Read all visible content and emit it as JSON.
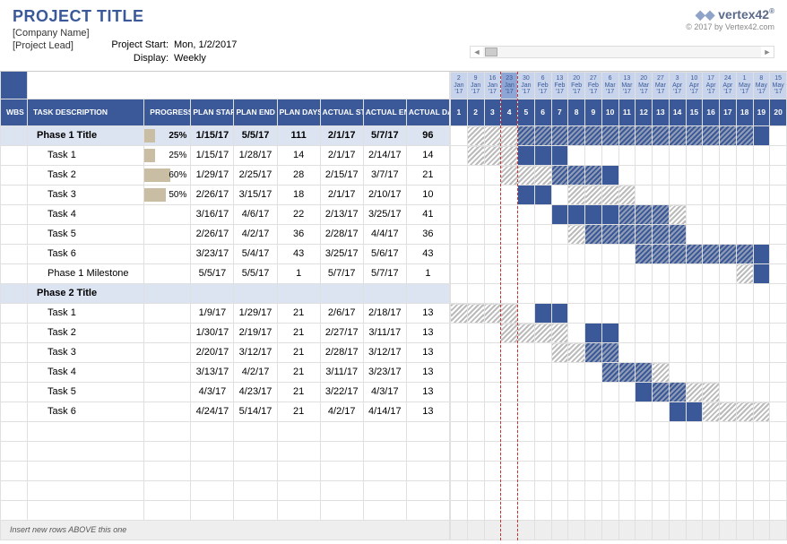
{
  "header": {
    "title": "PROJECT TITLE",
    "company": "[Company Name]",
    "lead": "[Project Lead]",
    "logo_text": "vertex42",
    "copyright": "© 2017 by Vertex42.com",
    "project_start_label": "Project Start:",
    "project_start_value": "Mon, 1/2/2017",
    "display_label": "Display:",
    "display_value": "Weekly"
  },
  "columns": {
    "wbs": "WBS",
    "task": "TASK DESCRIPTION",
    "progress": "PROGRESS",
    "plan_start": "PLAN START",
    "plan_end": "PLAN END",
    "plan_days": "PLAN DAYS",
    "actual_start": "ACTUAL START",
    "actual_end": "ACTUAL END",
    "actual_days": "ACTUAL DAYS"
  },
  "timeline": {
    "current_index": 3,
    "marker_indices": [
      2,
      3
    ],
    "weeks": [
      {
        "top": "2 Jan '17",
        "num": "1"
      },
      {
        "top": "9 Jan '17",
        "num": "2"
      },
      {
        "top": "16 Jan '17",
        "num": "3"
      },
      {
        "top": "23 Jan '17",
        "num": "4"
      },
      {
        "top": "30 Jan '17",
        "num": "5"
      },
      {
        "top": "6 Feb '17",
        "num": "6"
      },
      {
        "top": "13 Feb '17",
        "num": "7"
      },
      {
        "top": "20 Feb '17",
        "num": "8"
      },
      {
        "top": "27 Feb '17",
        "num": "9"
      },
      {
        "top": "6 Mar '17",
        "num": "10"
      },
      {
        "top": "13 Mar '17",
        "num": "11"
      },
      {
        "top": "20 Mar '17",
        "num": "12"
      },
      {
        "top": "27 Mar '17",
        "num": "13"
      },
      {
        "top": "3 Apr '17",
        "num": "14"
      },
      {
        "top": "10 Apr '17",
        "num": "15"
      },
      {
        "top": "17 Apr '17",
        "num": "16"
      },
      {
        "top": "24 Apr '17",
        "num": "17"
      },
      {
        "top": "1 May '17",
        "num": "18"
      },
      {
        "top": "8 May '17",
        "num": "19"
      },
      {
        "top": "15 May '17",
        "num": "20"
      }
    ]
  },
  "rows": [
    {
      "type": "phase",
      "name": "Phase 1 Title",
      "progress": 25,
      "ps": "1/15/17",
      "pe": "5/5/17",
      "pd": "111",
      "as": "2/1/17",
      "ae": "5/7/17",
      "ad": "96",
      "plan": [
        1,
        17
      ],
      "actual": [
        4,
        18
      ]
    },
    {
      "type": "task",
      "name": "Task 1",
      "progress": 25,
      "ps": "1/15/17",
      "pe": "1/28/17",
      "pd": "14",
      "as": "2/1/17",
      "ae": "2/14/17",
      "ad": "14",
      "plan": [
        1,
        3
      ],
      "actual": [
        4,
        6
      ]
    },
    {
      "type": "task",
      "name": "Task 2",
      "progress": 60,
      "ps": "1/29/17",
      "pe": "2/25/17",
      "pd": "28",
      "as": "2/15/17",
      "ae": "3/7/17",
      "ad": "21",
      "plan": [
        3,
        8
      ],
      "actual": [
        6,
        9
      ]
    },
    {
      "type": "task",
      "name": "Task 3",
      "progress": 50,
      "ps": "2/26/17",
      "pe": "3/15/17",
      "pd": "18",
      "as": "2/1/17",
      "ae": "2/10/17",
      "ad": "10",
      "plan": [
        7,
        10
      ],
      "actual": [
        4,
        5
      ]
    },
    {
      "type": "task",
      "name": "Task 4",
      "progress": null,
      "ps": "3/16/17",
      "pe": "4/6/17",
      "pd": "22",
      "as": "2/13/17",
      "ae": "3/25/17",
      "ad": "41",
      "plan": [
        10,
        13
      ],
      "actual": [
        6,
        12
      ]
    },
    {
      "type": "task",
      "name": "Task 5",
      "progress": null,
      "ps": "2/26/17",
      "pe": "4/2/17",
      "pd": "36",
      "as": "2/28/17",
      "ae": "4/4/17",
      "ad": "36",
      "plan": [
        7,
        13
      ],
      "actual": [
        8,
        13
      ]
    },
    {
      "type": "task",
      "name": "Task 6",
      "progress": null,
      "ps": "3/23/17",
      "pe": "5/4/17",
      "pd": "43",
      "as": "3/25/17",
      "ae": "5/6/17",
      "ad": "43",
      "plan": [
        11,
        17
      ],
      "actual": [
        11,
        18
      ]
    },
    {
      "type": "task",
      "name": "Phase 1 Milestone",
      "progress": null,
      "ps": "5/5/17",
      "pe": "5/5/17",
      "pd": "1",
      "as": "5/7/17",
      "ae": "5/7/17",
      "ad": "1",
      "plan": [
        17,
        17
      ],
      "actual": [
        18,
        18
      ]
    },
    {
      "type": "phase",
      "name": "Phase 2 Title",
      "progress": null,
      "ps": "",
      "pe": "",
      "pd": "",
      "as": "",
      "ae": "",
      "ad": "",
      "plan": null,
      "actual": null
    },
    {
      "type": "task",
      "name": "Task 1",
      "progress": null,
      "ps": "1/9/17",
      "pe": "1/29/17",
      "pd": "21",
      "as": "2/6/17",
      "ae": "2/18/17",
      "ad": "13",
      "plan": [
        0,
        3
      ],
      "actual": [
        5,
        6
      ]
    },
    {
      "type": "task",
      "name": "Task 2",
      "progress": null,
      "ps": "1/30/17",
      "pe": "2/19/17",
      "pd": "21",
      "as": "2/27/17",
      "ae": "3/11/17",
      "ad": "13",
      "plan": [
        3,
        6
      ],
      "actual": [
        8,
        9
      ]
    },
    {
      "type": "task",
      "name": "Task 3",
      "progress": null,
      "ps": "2/20/17",
      "pe": "3/12/17",
      "pd": "21",
      "as": "2/28/17",
      "ae": "3/12/17",
      "ad": "13",
      "plan": [
        6,
        9
      ],
      "actual": [
        8,
        9
      ]
    },
    {
      "type": "task",
      "name": "Task 4",
      "progress": null,
      "ps": "3/13/17",
      "pe": "4/2/17",
      "pd": "21",
      "as": "3/11/17",
      "ae": "3/23/17",
      "ad": "13",
      "plan": [
        9,
        12
      ],
      "actual": [
        9,
        11
      ]
    },
    {
      "type": "task",
      "name": "Task 5",
      "progress": null,
      "ps": "4/3/17",
      "pe": "4/23/17",
      "pd": "21",
      "as": "3/22/17",
      "ae": "4/3/17",
      "ad": "13",
      "plan": [
        12,
        15
      ],
      "actual": [
        11,
        13
      ]
    },
    {
      "type": "task",
      "name": "Task 6",
      "progress": null,
      "ps": "4/24/17",
      "pe": "5/14/17",
      "pd": "21",
      "as": "4/2/17",
      "ae": "4/14/17",
      "ad": "13",
      "plan": [
        15,
        18
      ],
      "actual": [
        13,
        14
      ]
    }
  ],
  "empty_rows": 5,
  "insert_note": "Insert new rows ABOVE this one",
  "colors": {
    "header_blue": "#3b5998",
    "light_blue": "#c7d4ec",
    "phase_bg": "#dce4f2",
    "progress_bar": "#c9bda3",
    "gantt_actual": "#3b5998",
    "marker": "#c33333"
  }
}
